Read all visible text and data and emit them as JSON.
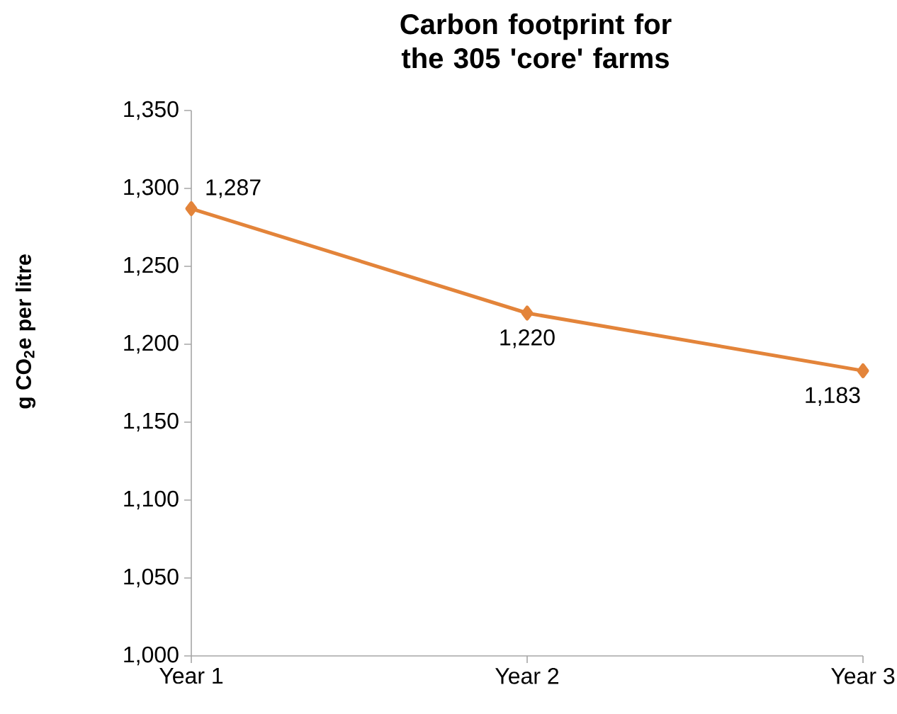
{
  "chart_data": {
    "type": "line",
    "title": "Carbon footprint for the 305 'core' farms",
    "ylabel": "g CO$_{2}$e per litre",
    "categories": [
      "Year 1",
      "Year 2",
      "Year 3"
    ],
    "values": [
      1287,
      1220,
      1183
    ],
    "value_labels": [
      "1,287",
      "1,220",
      "1,183"
    ],
    "color": "#e3843a",
    "marker": "diamond",
    "ylim": [
      1000,
      1350
    ],
    "yticks": [
      {
        "value": 1000,
        "label": "1,000"
      },
      {
        "value": 1050,
        "label": "1,050"
      },
      {
        "value": 1100,
        "label": "1,100"
      },
      {
        "value": 1150,
        "label": "1,150"
      },
      {
        "value": 1200,
        "label": "1,200"
      },
      {
        "value": 1250,
        "label": "1,250"
      },
      {
        "value": 1300,
        "label": "1,300"
      },
      {
        "value": 1350,
        "label": "1,350"
      }
    ]
  }
}
